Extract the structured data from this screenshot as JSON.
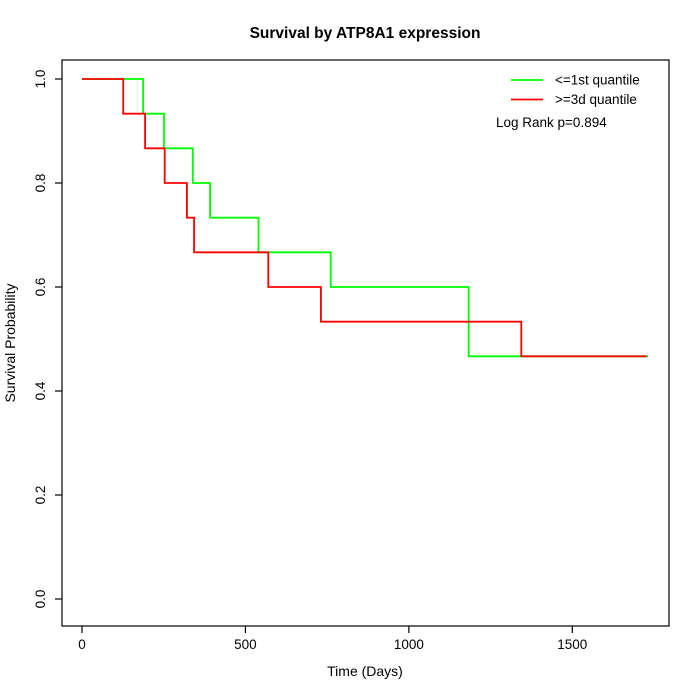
{
  "chart_data": {
    "type": "line",
    "subtype": "kaplan-meier-step",
    "title": "Survival by ATP8A1 expression",
    "xlabel": "Time (Days)",
    "ylabel": "Survival Probability",
    "xlim": [
      0,
      1800
    ],
    "ylim": [
      0.0,
      1.0
    ],
    "x_ticks": [
      0,
      500,
      1000,
      1500
    ],
    "y_ticks": [
      0.0,
      0.2,
      0.4,
      0.6,
      0.8,
      1.0
    ],
    "grid": false,
    "legend_position": "top-right",
    "annotation": "Log Rank p=0.894",
    "legend": [
      {
        "label": "<=1st quantile",
        "color": "#00ff00"
      },
      {
        "label": ">=3d quantile",
        "color": "#ff0000"
      }
    ],
    "series": [
      {
        "name": "<=1st quantile",
        "color": "#00ff00",
        "start": {
          "t": 0,
          "s": 1.0
        },
        "steps": [
          {
            "t": 187,
            "s": 0.9333
          },
          {
            "t": 251,
            "s": 0.8667
          },
          {
            "t": 339,
            "s": 0.8
          },
          {
            "t": 392,
            "s": 0.7333
          },
          {
            "t": 540,
            "s": 0.6667
          },
          {
            "t": 761,
            "s": 0.6
          },
          {
            "t": 1183,
            "s": 0.4667
          }
        ],
        "end_time": 1732
      },
      {
        "name": ">=3d quantile",
        "color": "#ff0000",
        "start": {
          "t": 0,
          "s": 1.0
        },
        "steps": [
          {
            "t": 126,
            "s": 0.9333
          },
          {
            "t": 193,
            "s": 0.8667
          },
          {
            "t": 253,
            "s": 0.8
          },
          {
            "t": 321,
            "s": 0.7333
          },
          {
            "t": 343,
            "s": 0.6667
          },
          {
            "t": 570,
            "s": 0.6
          },
          {
            "t": 731,
            "s": 0.5333
          },
          {
            "t": 1344,
            "s": 0.4667
          }
        ],
        "end_time": 1727
      }
    ],
    "axis_color": "#000000",
    "background_color": "#ffffff"
  }
}
